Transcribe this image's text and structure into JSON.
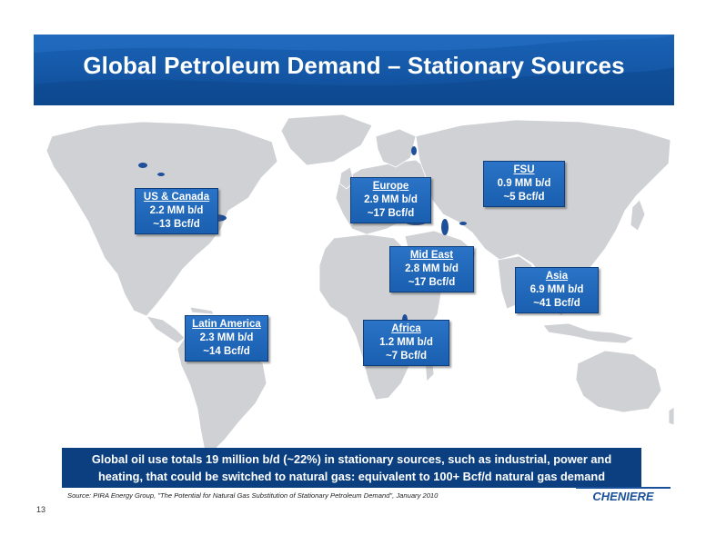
{
  "slide": {
    "title": "Global Petroleum Demand – Stationary Sources",
    "page_number": "13",
    "summary_line1": "Global oil use totals 19 million b/d (~22%) in stationary sources, such as industrial, power and",
    "summary_line2": "heating, that could be switched to natural gas: equivalent to 100+ Bcf/d natural gas demand",
    "source": "Source: PIRA Energy Group, \"The Potential for Natural Gas Substitution of Stationary Petroleum Demand\", January 2010",
    "logo_text": "CHENIERE"
  },
  "colors": {
    "header_blue": "#1457a6",
    "callout_blue": "#1f66b8",
    "summary_navy": "#0b3f80",
    "land_gray": "#cfd1d4",
    "water_blue": "#1f4f9a"
  },
  "regions": [
    {
      "name": "US & Canada",
      "oil": "2.2 MM b/d",
      "gas": "~13 Bcf/d"
    },
    {
      "name": "Latin America",
      "oil": "2.3 MM b/d",
      "gas": "~14 Bcf/d"
    },
    {
      "name": "Europe",
      "oil": "2.9 MM b/d",
      "gas": "~17 Bcf/d"
    },
    {
      "name": "Mid East",
      "oil": "2.8 MM b/d",
      "gas": "~17 Bcf/d"
    },
    {
      "name": "Africa",
      "oil": "1.2 MM b/d",
      "gas": "~7 Bcf/d"
    },
    {
      "name": "FSU",
      "oil": "0.9 MM b/d",
      "gas": "~5 Bcf/d"
    },
    {
      "name": "Asia",
      "oil": "6.9 MM b/d",
      "gas": "~41 Bcf/d"
    }
  ]
}
